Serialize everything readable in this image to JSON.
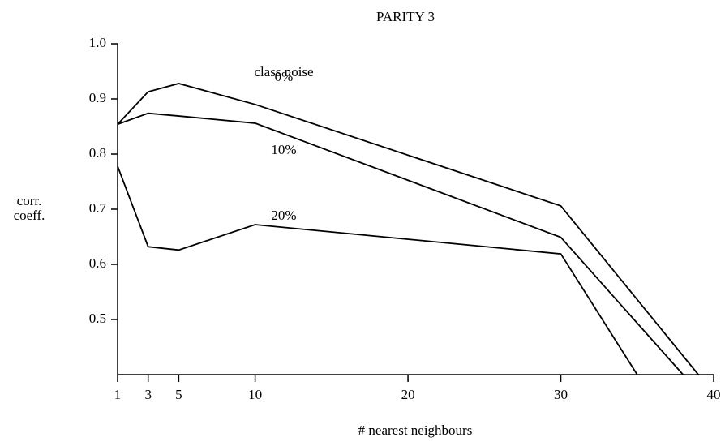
{
  "chart_data": {
    "type": "line",
    "title": "PARITY 3",
    "xlabel": "# nearest neighbours",
    "ylabel": [
      "corr.",
      "coeff."
    ],
    "annotation": "class noise",
    "xlim": [
      1,
      40
    ],
    "xticks": [
      1,
      3,
      5,
      10,
      20,
      30,
      40
    ],
    "ylim": [
      0.4,
      1.0
    ],
    "yticks": [
      0.5,
      0.6,
      0.7,
      0.8,
      0.9,
      {
        "value": 1,
        "label": "1.0"
      }
    ],
    "series": [
      {
        "name": "0%",
        "color": "#000000",
        "x": [
          1,
          3,
          5,
          10,
          30,
          39
        ],
        "values": [
          0.854,
          0.913,
          0.928,
          0.89,
          0.706,
          0.4
        ]
      },
      {
        "name": "10%",
        "color": "#000000",
        "x": [
          1,
          3,
          5,
          10,
          30,
          38
        ],
        "values": [
          0.854,
          0.874,
          0.869,
          0.856,
          0.649,
          0.4
        ]
      },
      {
        "name": "20%",
        "color": "#000000",
        "x": [
          1,
          3,
          5,
          10,
          30,
          35
        ],
        "values": [
          0.778,
          0.632,
          0.626,
          0.672,
          0.619,
          0.4
        ]
      }
    ]
  }
}
